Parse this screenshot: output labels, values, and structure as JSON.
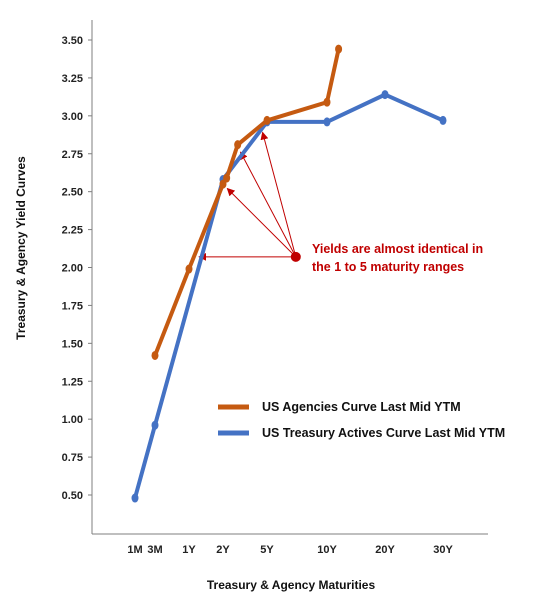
{
  "chart_data": {
    "type": "line",
    "xlabel": "Treasury & Agency Maturities",
    "ylabel": "Treasury & Agency Yield Curves",
    "ylim": [
      0.25,
      3.6
    ],
    "y_ticks": [
      "0.50",
      "0.75",
      "1.00",
      "1.25",
      "1.50",
      "1.75",
      "2.00",
      "2.25",
      "2.50",
      "2.75",
      "3.00",
      "3.25",
      "3.50"
    ],
    "x_ticks": [
      {
        "label": "1M",
        "years": 0.083
      },
      {
        "label": "3M",
        "years": 0.25
      },
      {
        "label": "1Y",
        "years": 1
      },
      {
        "label": "2Y",
        "years": 2
      },
      {
        "label": "5Y",
        "years": 5
      },
      {
        "label": "10Y",
        "years": 10
      },
      {
        "label": "20Y",
        "years": 20
      },
      {
        "label": "30Y",
        "years": 30
      }
    ],
    "grid": false,
    "legend_position": "right-middle",
    "series": [
      {
        "name": "US Agencies Curve Last Mid YTM",
        "color": "#c55a11",
        "points": [
          {
            "x": 0.25,
            "y": 1.42
          },
          {
            "x": 1,
            "y": 1.99
          },
          {
            "x": 2,
            "y": 2.55
          },
          {
            "x": 2.25,
            "y": 2.59
          },
          {
            "x": 3,
            "y": 2.81
          },
          {
            "x": 5,
            "y": 2.97
          },
          {
            "x": 10,
            "y": 3.09
          },
          {
            "x": 12,
            "y": 3.44
          }
        ]
      },
      {
        "name": "US Treasury Actives Curve Last Mid YTM",
        "color": "#4472c4",
        "points": [
          {
            "x": 0.083,
            "y": 0.48
          },
          {
            "x": 0.25,
            "y": 0.96
          },
          {
            "x": 2,
            "y": 2.58
          },
          {
            "x": 5,
            "y": 2.96
          },
          {
            "x": 10,
            "y": 2.96
          },
          {
            "x": 20,
            "y": 3.14
          },
          {
            "x": 30,
            "y": 2.97
          }
        ]
      }
    ],
    "annotation": {
      "lines": [
        "Yields are almost identical in",
        "the 1 to 5 maturity ranges"
      ],
      "color": "#c00000",
      "source": {
        "x": 7.4,
        "y": 2.07
      },
      "targets": [
        {
          "x": 1.3,
          "y": 2.07
        },
        {
          "x": 2.3,
          "y": 2.52
        },
        {
          "x": 3.2,
          "y": 2.76
        },
        {
          "x": 4.7,
          "y": 2.89
        }
      ]
    }
  }
}
